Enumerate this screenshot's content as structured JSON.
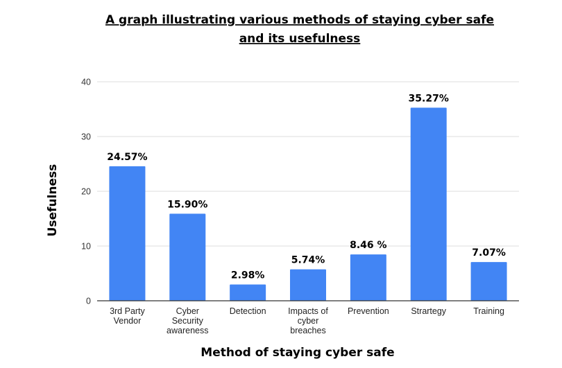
{
  "chart_data": {
    "type": "bar",
    "title": [
      "A graph illustrating various methods of staying cyber safe",
      "and its usefulness"
    ],
    "xlabel": "Method of staying cyber safe",
    "ylabel": "Usefulness",
    "ylim": [
      0,
      40
    ],
    "yticks": [
      0,
      10,
      20,
      30,
      40
    ],
    "grid": true,
    "legend": "none",
    "colors": {
      "bar": "#4285f4",
      "grid": "#dddddd",
      "axis": "#333333"
    },
    "categories": [
      [
        "3rd Party",
        "Vendor"
      ],
      [
        "Cyber",
        "Security",
        "awareness"
      ],
      [
        "Detection"
      ],
      [
        "Impacts of",
        "cyber",
        "breaches"
      ],
      [
        "Prevention"
      ],
      [
        "Strartegy"
      ],
      [
        "Training"
      ]
    ],
    "values": [
      24.57,
      15.9,
      2.98,
      5.74,
      8.46,
      35.27,
      7.07
    ],
    "data_labels": [
      "24.57%",
      "15.90%",
      "2.98%",
      "5.74%",
      "8.46 %",
      "35.27%",
      "7.07%"
    ]
  }
}
